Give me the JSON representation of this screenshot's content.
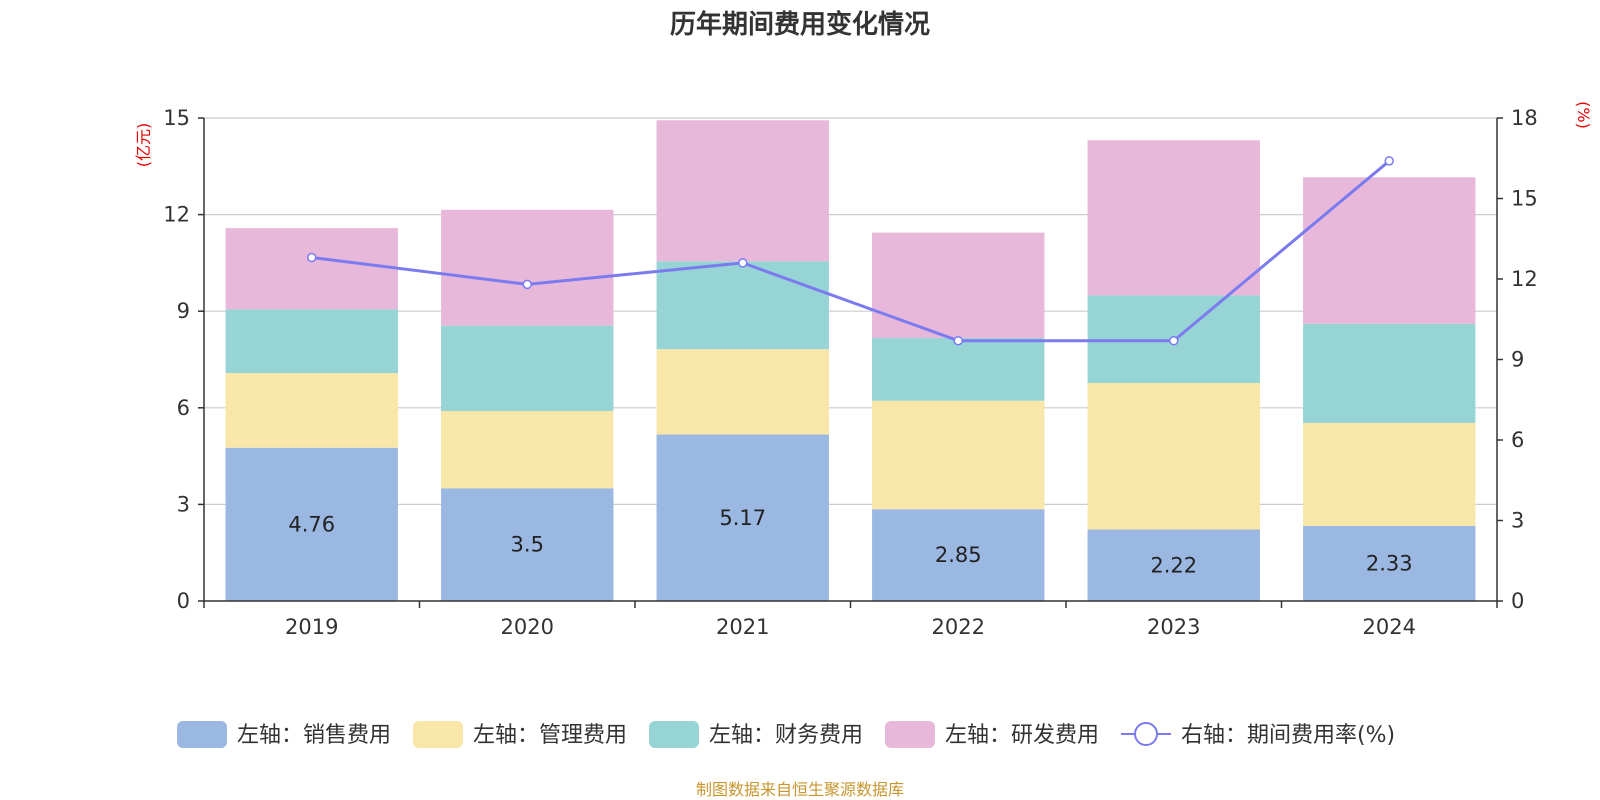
{
  "chart_data": {
    "type": "bar",
    "stacked": true,
    "title": "历年期间费用变化情况",
    "categories": [
      "2019",
      "2020",
      "2021",
      "2022",
      "2023",
      "2024"
    ],
    "left_axis": {
      "unit": "(亿元)",
      "ylim": [
        0,
        15
      ],
      "ticks": [
        "0",
        "3",
        "6",
        "9",
        "12",
        "15"
      ]
    },
    "right_axis": {
      "unit": "(%)",
      "ylim": [
        0,
        18
      ],
      "ticks": [
        "0",
        "3",
        "6",
        "9",
        "12",
        "15",
        "18"
      ]
    },
    "series": [
      {
        "name": "左轴：销售费用",
        "type": "bar",
        "axis": "left",
        "color": "#9bb8e2",
        "values": [
          4.76,
          3.5,
          5.17,
          2.85,
          2.22,
          2.33
        ],
        "labels": [
          "4.76",
          "3.5",
          "5.17",
          "2.85",
          "2.22",
          "2.33"
        ]
      },
      {
        "name": "左轴：管理费用",
        "type": "bar",
        "axis": "left",
        "color": "#f8e7a8",
        "values": [
          2.32,
          2.4,
          2.65,
          3.37,
          4.55,
          3.2
        ]
      },
      {
        "name": "左轴：财务费用",
        "type": "bar",
        "axis": "left",
        "color": "#97d4d5",
        "values": [
          1.98,
          2.65,
          2.73,
          1.95,
          2.72,
          3.08
        ]
      },
      {
        "name": "左轴：研发费用",
        "type": "bar",
        "axis": "left",
        "color": "#e8b8da",
        "values": [
          2.52,
          3.6,
          4.38,
          3.27,
          4.82,
          4.55
        ]
      },
      {
        "name": "右轴：期间费用率(%)",
        "type": "line",
        "axis": "right",
        "color": "#7b7bef",
        "values": [
          12.8,
          11.8,
          12.6,
          9.7,
          9.7,
          16.4
        ]
      }
    ],
    "legend_position": "bottom",
    "grid": true
  },
  "source": "制图数据来自恒生聚源数据库"
}
